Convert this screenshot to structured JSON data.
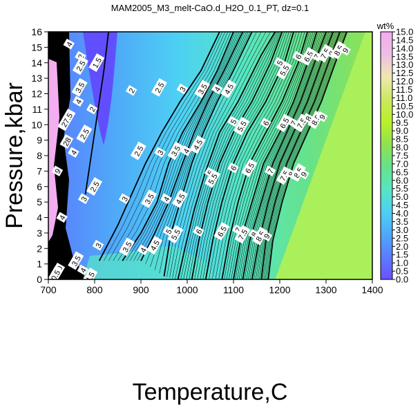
{
  "chart_data": {
    "type": "heatmap",
    "title": "MAM2005_M3_melt-CaO.d_H2O_0.1_PT, dz=0.1",
    "xlabel": "Temperature,C",
    "ylabel": "Pressure,kbar",
    "xlim": [
      700,
      1400
    ],
    "ylim": [
      0,
      16
    ],
    "x_ticks": [
      "700",
      "800",
      "900",
      "1000",
      "1100",
      "1200",
      "1300",
      "1400"
    ],
    "y_ticks": [
      "0",
      "1",
      "2",
      "3",
      "4",
      "5",
      "6",
      "7",
      "8",
      "9",
      "10",
      "11",
      "12",
      "13",
      "14",
      "15",
      "16"
    ],
    "colorbar": {
      "unit": "wt%",
      "range": [
        0.0,
        15.0
      ],
      "ticks": [
        "0.0",
        "0.5",
        "1.0",
        "1.5",
        "2.0",
        "2.5",
        "3.0",
        "3.5",
        "4.0",
        "4.5",
        "5.0",
        "5.5",
        "6.0",
        "6.5",
        "7.0",
        "7.5",
        "8.0",
        "8.5",
        "9.0",
        "9.5",
        "10.0",
        "10.5",
        "11.0",
        "11.5",
        "12.0",
        "12.5",
        "13.0",
        "13.5",
        "14.0",
        "14.5",
        "15.0"
      ],
      "colors": [
        "#6a50ff",
        "#5c7cff",
        "#4fa8f8",
        "#4dd0f4",
        "#56e6c2",
        "#66e28c",
        "#8fe24e",
        "#b9f02a",
        "#cce860",
        "#f0e8ae",
        "#ecbfe6",
        "#f4aaf0"
      ]
    },
    "saturated_region": {
      "boundary": [
        [
          1190,
          0
        ],
        [
          1385,
          16
        ]
      ],
      "value": 9.5,
      "color": "#aaf05a"
    },
    "contours": [
      {
        "level": 2.5,
        "points": [
          [
            780,
            5.5
          ],
          [
            790,
            7.5
          ],
          [
            800,
            9.5
          ],
          [
            810,
            11.5
          ],
          [
            820,
            13.5
          ],
          [
            830,
            16
          ]
        ]
      },
      {
        "level": 3,
        "points": [
          [
            810,
            1.2
          ],
          [
            850,
            3.5
          ],
          [
            880,
            5.5
          ],
          [
            910,
            7.5
          ],
          [
            945,
            9.5
          ],
          [
            985,
            11.5
          ],
          [
            1030,
            13.5
          ],
          [
            1070,
            16
          ]
        ]
      },
      {
        "level": 3.5,
        "points": [
          [
            860,
            1.2
          ],
          [
            900,
            3
          ],
          [
            935,
            5
          ],
          [
            960,
            7.5
          ],
          [
            990,
            9.5
          ],
          [
            1030,
            11.5
          ],
          [
            1065,
            13.5
          ],
          [
            1100,
            16
          ]
        ]
      },
      {
        "level": 4,
        "points": [
          [
            900,
            1.2
          ],
          [
            930,
            3
          ],
          [
            960,
            5
          ],
          [
            990,
            7.5
          ],
          [
            1015,
            9.5
          ],
          [
            1045,
            11.5
          ],
          [
            1080,
            13.5
          ],
          [
            1120,
            16
          ]
        ]
      },
      {
        "level": 4.5,
        "points": [
          [
            950,
            0.2
          ],
          [
            965,
            3
          ],
          [
            985,
            5
          ],
          [
            1010,
            7.5
          ],
          [
            1035,
            9.5
          ],
          [
            1065,
            11.5
          ],
          [
            1100,
            13.5
          ],
          [
            1140,
            16
          ]
        ]
      },
      {
        "level": 5,
        "points": [
          [
            980,
            0
          ],
          [
            995,
            2
          ],
          [
            1015,
            4.5
          ],
          [
            1040,
            7
          ],
          [
            1070,
            9.5
          ],
          [
            1110,
            11.5
          ],
          [
            1160,
            14.5
          ],
          [
            1190,
            16
          ]
        ]
      },
      {
        "level": 5.5,
        "points": [
          [
            1010,
            0
          ],
          [
            1025,
            2.5
          ],
          [
            1045,
            5
          ],
          [
            1070,
            7.5
          ],
          [
            1100,
            9.5
          ],
          [
            1140,
            11.5
          ],
          [
            1180,
            14
          ],
          [
            1205,
            16
          ]
        ]
      },
      {
        "level": 6,
        "points": [
          [
            1040,
            0
          ],
          [
            1055,
            2.5
          ],
          [
            1075,
            5
          ],
          [
            1100,
            7.5
          ],
          [
            1130,
            9.5
          ],
          [
            1170,
            11.5
          ],
          [
            1210,
            14
          ],
          [
            1230,
            16
          ]
        ]
      },
      {
        "level": 6.5,
        "points": [
          [
            1075,
            0
          ],
          [
            1090,
            2.5
          ],
          [
            1110,
            5
          ],
          [
            1135,
            7.5
          ],
          [
            1170,
            9.5
          ],
          [
            1205,
            11.5
          ],
          [
            1240,
            14
          ],
          [
            1260,
            16
          ]
        ]
      },
      {
        "level": 7,
        "points": [
          [
            1100,
            0
          ],
          [
            1115,
            2.5
          ],
          [
            1140,
            5
          ],
          [
            1165,
            7.5
          ],
          [
            1200,
            9.5
          ],
          [
            1230,
            11.5
          ],
          [
            1260,
            14
          ],
          [
            1280,
            16
          ]
        ]
      },
      {
        "level": 7.5,
        "points": [
          [
            1120,
            0
          ],
          [
            1135,
            2.5
          ],
          [
            1160,
            5
          ],
          [
            1185,
            7.5
          ],
          [
            1215,
            9.5
          ],
          [
            1245,
            11.5
          ],
          [
            1275,
            14
          ],
          [
            1300,
            16
          ]
        ]
      },
      {
        "level": 8,
        "points": [
          [
            1140,
            0
          ],
          [
            1155,
            2.5
          ],
          [
            1175,
            5
          ],
          [
            1200,
            7.5
          ],
          [
            1230,
            9.5
          ],
          [
            1260,
            11.5
          ],
          [
            1290,
            14
          ],
          [
            1315,
            16
          ]
        ]
      },
      {
        "level": 8.5,
        "points": [
          [
            1160,
            0
          ],
          [
            1170,
            2.5
          ],
          [
            1190,
            5
          ],
          [
            1215,
            7.5
          ],
          [
            1245,
            9.5
          ],
          [
            1275,
            11.5
          ],
          [
            1305,
            14
          ],
          [
            1330,
            16
          ]
        ]
      },
      {
        "level": 9,
        "points": [
          [
            1175,
            0
          ],
          [
            1185,
            2.5
          ],
          [
            1205,
            5
          ],
          [
            1230,
            7.5
          ],
          [
            1260,
            9.5
          ],
          [
            1290,
            11.5
          ],
          [
            1320,
            14
          ],
          [
            1345,
            16
          ]
        ]
      }
    ],
    "contour_labels": [
      {
        "text": "4",
        "x": 745,
        "y": 15.2
      },
      {
        "text": "2",
        "x": 770,
        "y": 14.4
      },
      {
        "text": "2.5",
        "x": 770,
        "y": 13.8
      },
      {
        "text": "1.5",
        "x": 805,
        "y": 14.0
      },
      {
        "text": "3.5",
        "x": 768,
        "y": 12.4
      },
      {
        "text": "4",
        "x": 765,
        "y": 11.5
      },
      {
        "text": "2",
        "x": 795,
        "y": 11.0
      },
      {
        "text": "2.5",
        "x": 778,
        "y": 9.4
      },
      {
        "text": "27.5",
        "x": 740,
        "y": 10.3
      },
      {
        "text": "2",
        "x": 880,
        "y": 12.2
      },
      {
        "text": "2.5",
        "x": 940,
        "y": 12.4
      },
      {
        "text": "3",
        "x": 990,
        "y": 12.3
      },
      {
        "text": "3.5",
        "x": 1033,
        "y": 12.3
      },
      {
        "text": "4",
        "x": 1065,
        "y": 12.3
      },
      {
        "text": "4.5",
        "x": 1090,
        "y": 12.3
      },
      {
        "text": "5",
        "x": 1200,
        "y": 14.0
      },
      {
        "text": "5.5",
        "x": 1210,
        "y": 13.5
      },
      {
        "text": "6",
        "x": 1240,
        "y": 14.4
      },
      {
        "text": "6.5",
        "x": 1262,
        "y": 14.4
      },
      {
        "text": "7",
        "x": 1280,
        "y": 14.4
      },
      {
        "text": "7.5",
        "x": 1298,
        "y": 14.6
      },
      {
        "text": "8",
        "x": 1312,
        "y": 14.6
      },
      {
        "text": "8.5",
        "x": 1327,
        "y": 14.8
      },
      {
        "text": "9",
        "x": 1342,
        "y": 14.8
      },
      {
        "text": "5",
        "x": 1100,
        "y": 10.2
      },
      {
        "text": "5.5",
        "x": 1118,
        "y": 9.9
      },
      {
        "text": "6",
        "x": 1170,
        "y": 10.1
      },
      {
        "text": "6.5",
        "x": 1210,
        "y": 10.1
      },
      {
        "text": "7",
        "x": 1230,
        "y": 10.1
      },
      {
        "text": "7.5",
        "x": 1247,
        "y": 10.1
      },
      {
        "text": "8",
        "x": 1262,
        "y": 10.4
      },
      {
        "text": "8.5",
        "x": 1278,
        "y": 10.3
      },
      {
        "text": "9",
        "x": 1292,
        "y": 10.5
      },
      {
        "text": "2.5",
        "x": 895,
        "y": 8.3
      },
      {
        "text": "3",
        "x": 942,
        "y": 8.2
      },
      {
        "text": "3.5",
        "x": 975,
        "y": 8.3
      },
      {
        "text": "4",
        "x": 998,
        "y": 8.3
      },
      {
        "text": "4.5",
        "x": 1023,
        "y": 8.7
      },
      {
        "text": "5",
        "x": 1050,
        "y": 6.9
      },
      {
        "text": "5.5",
        "x": 1055,
        "y": 6.5
      },
      {
        "text": "6",
        "x": 1100,
        "y": 7.2
      },
      {
        "text": "6.5",
        "x": 1135,
        "y": 7.2
      },
      {
        "text": "7",
        "x": 1180,
        "y": 7.0
      },
      {
        "text": "7.5",
        "x": 1210,
        "y": 6.7
      },
      {
        "text": "8",
        "x": 1225,
        "y": 6.8
      },
      {
        "text": "8.5",
        "x": 1240,
        "y": 6.9
      },
      {
        "text": "9",
        "x": 1252,
        "y": 6.8
      },
      {
        "text": "2.5",
        "x": 800,
        "y": 6.0
      },
      {
        "text": "3",
        "x": 865,
        "y": 5.2
      },
      {
        "text": "3.5",
        "x": 918,
        "y": 5.2
      },
      {
        "text": "4",
        "x": 955,
        "y": 5.2
      },
      {
        "text": "4.5",
        "x": 985,
        "y": 5.2
      },
      {
        "text": "3",
        "x": 777,
        "y": 5.2
      },
      {
        "text": "5",
        "x": 960,
        "y": 3.1
      },
      {
        "text": "5.5",
        "x": 975,
        "y": 2.9
      },
      {
        "text": "6",
        "x": 1025,
        "y": 3.1
      },
      {
        "text": "6.5",
        "x": 1075,
        "y": 3.1
      },
      {
        "text": "7",
        "x": 1110,
        "y": 3.2
      },
      {
        "text": "7.5",
        "x": 1120,
        "y": 2.9
      },
      {
        "text": "8",
        "x": 1145,
        "y": 2.9
      },
      {
        "text": "8.5",
        "x": 1158,
        "y": 2.8
      },
      {
        "text": "9",
        "x": 1172,
        "y": 2.8
      },
      {
        "text": "3",
        "x": 808,
        "y": 2.2
      },
      {
        "text": "3.5",
        "x": 870,
        "y": 2.1
      },
      {
        "text": "4",
        "x": 905,
        "y": 1.9
      },
      {
        "text": "4.5",
        "x": 930,
        "y": 2.2
      },
      {
        "text": "3.5",
        "x": 760,
        "y": 1.2
      },
      {
        "text": "4",
        "x": 775,
        "y": 0.6
      },
      {
        "text": "4.5",
        "x": 790,
        "y": 0.15
      },
      {
        "text": "20",
        "x": 722,
        "y": 0.6
      },
      {
        "text": "20.5",
        "x": 713,
        "y": 0.15
      },
      {
        "text": "4",
        "x": 730,
        "y": 4.0
      },
      {
        "text": "9",
        "x": 720,
        "y": 7.0
      },
      {
        "text": "4",
        "x": 755,
        "y": 8.2
      },
      {
        "text": "28",
        "x": 740,
        "y": 8.9
      }
    ]
  }
}
